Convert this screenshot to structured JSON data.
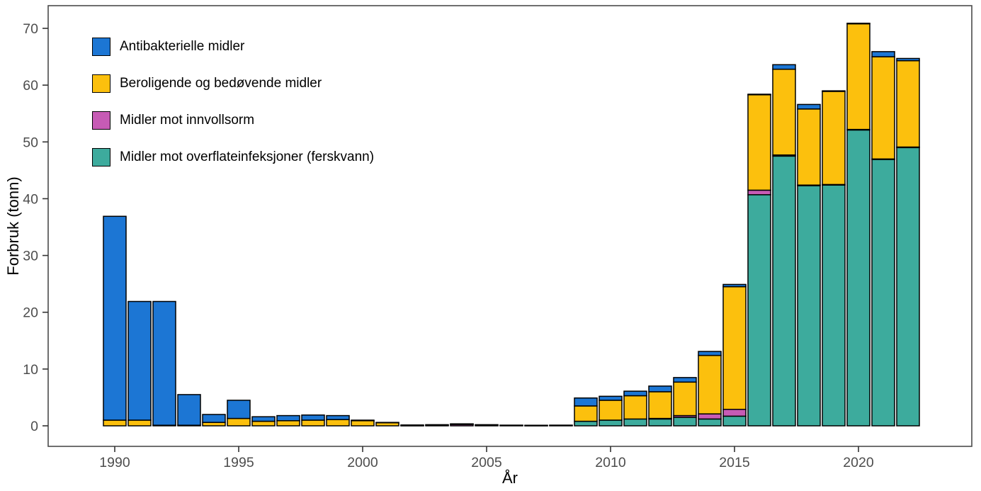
{
  "chart_data": {
    "type": "bar",
    "stacked": true,
    "xlabel": "År",
    "ylabel": "Forbruk (tonn)",
    "grid": false,
    "legend_position": "top-left-inside",
    "ylim": [
      0,
      74
    ],
    "yticks": [
      0,
      10,
      20,
      30,
      40,
      50,
      60,
      70
    ],
    "xticks": [
      1990,
      1995,
      2000,
      2005,
      2010,
      2015,
      2020
    ],
    "x": [
      1990,
      1991,
      1992,
      1993,
      1994,
      1995,
      1996,
      1997,
      1998,
      1999,
      2000,
      2001,
      2002,
      2003,
      2004,
      2005,
      2006,
      2007,
      2008,
      2009,
      2010,
      2011,
      2012,
      2013,
      2014,
      2015,
      2016,
      2017,
      2018,
      2019,
      2020,
      2021,
      2022
    ],
    "series": [
      {
        "name": "Antibakterielle midler",
        "color": "#1c76d4",
        "values": [
          35.9,
          20.9,
          21.8,
          5.4,
          1.4,
          3.2,
          0.8,
          0.9,
          0.9,
          0.7,
          0.1,
          0.05,
          0.1,
          0.1,
          0.05,
          0.1,
          0.06,
          0.05,
          0.06,
          1.4,
          0.7,
          0.8,
          1.0,
          0.8,
          0.7,
          0.4,
          0.1,
          0.8,
          0.8,
          0.1,
          0.1,
          0.9,
          0.4
        ]
      },
      {
        "name": "Beroligende og bedøvende midler",
        "color": "#fcc00d",
        "values": [
          1.0,
          1.0,
          0.1,
          0.1,
          0.6,
          1.3,
          0.8,
          0.9,
          1.0,
          1.1,
          0.9,
          0.55,
          0.05,
          0.1,
          0.05,
          0.1,
          0.06,
          0.05,
          0.06,
          2.7,
          3.5,
          4.1,
          4.7,
          5.9,
          10.3,
          21.6,
          16.8,
          15.1,
          13.4,
          16.4,
          18.6,
          18.0,
          15.2
        ]
      },
      {
        "name": "Midler mot innvollsorm",
        "color": "#c75bb5",
        "values": [
          0,
          0,
          0,
          0,
          0,
          0,
          0,
          0,
          0,
          0,
          0,
          0,
          0,
          0,
          0.25,
          0,
          0,
          0,
          0,
          0,
          0,
          0,
          0.1,
          0.3,
          0.9,
          1.2,
          0.8,
          0.2,
          0.1,
          0.1,
          0.1,
          0.1,
          0.1
        ]
      },
      {
        "name": "Midler mot overflateinfeksjoner (ferskvann)",
        "color": "#3dab9d",
        "values": [
          0,
          0,
          0,
          0,
          0,
          0,
          0,
          0,
          0,
          0,
          0,
          0,
          0,
          0,
          0,
          0,
          0,
          0,
          0,
          0.8,
          1.0,
          1.2,
          1.2,
          1.5,
          1.2,
          1.7,
          40.7,
          47.5,
          42.3,
          42.4,
          52.1,
          46.9,
          49.0
        ]
      }
    ],
    "stack_order_bottom_to_top": [
      3,
      2,
      1,
      0
    ],
    "panel_border_color": "#4b4b4b",
    "bar_outline_color": "#000000",
    "tick_label_color": "#4d4d4d"
  }
}
